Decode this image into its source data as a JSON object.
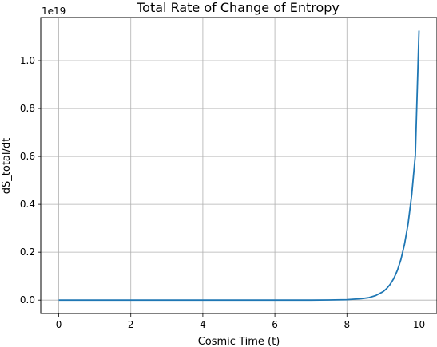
{
  "chart_data": {
    "type": "line",
    "title": "Total Rate of Change of Entropy",
    "xlabel": "Cosmic Time (t)",
    "ylabel": "dS_total/dt",
    "y_offset_label": "1e19",
    "xlim": [
      -0.5,
      10.5
    ],
    "ylim": [
      -0.056,
      1.18
    ],
    "xticks": [
      0,
      2,
      4,
      6,
      8,
      10
    ],
    "xtick_labels": [
      "0",
      "2",
      "4",
      "6",
      "8",
      "10"
    ],
    "yticks": [
      0.0,
      0.2,
      0.4,
      0.6,
      0.8,
      1.0
    ],
    "ytick_labels": [
      "0.0",
      "0.2",
      "0.4",
      "0.6",
      "0.8",
      "1.0"
    ],
    "grid": true,
    "series": [
      {
        "color": "#1f77b4",
        "x": [
          0,
          1,
          2,
          3,
          4,
          5,
          6,
          7,
          7.5,
          8,
          8.4,
          8.6,
          8.8,
          9.0,
          9.1,
          9.2,
          9.3,
          9.4,
          9.5,
          9.6,
          9.7,
          9.8,
          9.9,
          10.0
        ],
        "y": [
          0,
          0,
          0,
          0,
          0,
          0,
          0,
          0.0001,
          0.0005,
          0.002,
          0.006,
          0.01,
          0.019,
          0.035,
          0.048,
          0.066,
          0.09,
          0.124,
          0.17,
          0.234,
          0.32,
          0.44,
          0.605,
          1.125
        ]
      }
    ]
  }
}
